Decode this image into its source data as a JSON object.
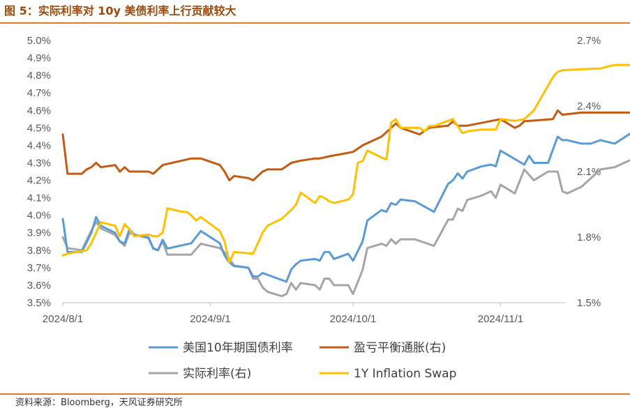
{
  "header": {
    "title": "图 5：实际利率对 10y 美债利率上行贡献较大"
  },
  "footer": {
    "source": "资料来源：Bloomberg，天风证券研究所"
  },
  "chart_data": {
    "type": "line",
    "title": "图 5：实际利率对 10y 美债利率上行贡献较大",
    "x_tick_labels": [
      "2024/8/1",
      "2024/9/1",
      "2024/10/1",
      "2024/11/1"
    ],
    "x_range": [
      "2024/8/1",
      "2024/11/29"
    ],
    "left_axis": {
      "ylim": [
        3.5,
        5.0
      ],
      "tick_labels": [
        "3.5%",
        "3.6%",
        "3.7%",
        "3.8%",
        "3.9%",
        "4.0%",
        "4.1%",
        "4.2%",
        "4.3%",
        "4.4%",
        "4.5%",
        "4.6%",
        "4.7%",
        "4.8%",
        "4.9%",
        "5.0%"
      ]
    },
    "right_axis": {
      "ylim": [
        1.5,
        2.7
      ],
      "tick_labels": [
        "1.5%",
        "1.8%",
        "2.1%",
        "2.4%",
        "2.7%"
      ]
    },
    "grid": false,
    "legend_position": "bottom",
    "series": [
      {
        "name": "美国10年期国债利率",
        "axis": "left",
        "color": "#5b9bd5",
        "points": [
          [
            "2024/8/1",
            3.98
          ],
          [
            "2024/8/2",
            3.79
          ],
          [
            "2024/8/5",
            3.79
          ],
          [
            "2024/8/7",
            3.9
          ],
          [
            "2024/8/8",
            3.99
          ],
          [
            "2024/8/9",
            3.94
          ],
          [
            "2024/8/12",
            3.9
          ],
          [
            "2024/8/13",
            3.85
          ],
          [
            "2024/8/14",
            3.84
          ],
          [
            "2024/8/15",
            3.92
          ],
          [
            "2024/8/16",
            3.89
          ],
          [
            "2024/8/19",
            3.87
          ],
          [
            "2024/8/20",
            3.81
          ],
          [
            "2024/8/21",
            3.8
          ],
          [
            "2024/8/22",
            3.86
          ],
          [
            "2024/8/23",
            3.81
          ],
          [
            "2024/8/28",
            3.84
          ],
          [
            "2024/8/30",
            3.91
          ],
          [
            "2024/9/3",
            3.84
          ],
          [
            "2024/9/4",
            3.77
          ],
          [
            "2024/9/5",
            3.73
          ],
          [
            "2024/9/6",
            3.71
          ],
          [
            "2024/9/9",
            3.7
          ],
          [
            "2024/9/10",
            3.65
          ],
          [
            "2024/9/11",
            3.65
          ],
          [
            "2024/9/12",
            3.67
          ],
          [
            "2024/9/17",
            3.62
          ],
          [
            "2024/9/18",
            3.69
          ],
          [
            "2024/9/19",
            3.72
          ],
          [
            "2024/9/20",
            3.74
          ],
          [
            "2024/9/23",
            3.75
          ],
          [
            "2024/9/24",
            3.74
          ],
          [
            "2024/9/25",
            3.79
          ],
          [
            "2024/9/26",
            3.79
          ],
          [
            "2024/9/27",
            3.75
          ],
          [
            "2024/9/30",
            3.78
          ],
          [
            "2024/10/1",
            3.74
          ],
          [
            "2024/10/3",
            3.85
          ],
          [
            "2024/10/4",
            3.97
          ],
          [
            "2024/10/7",
            4.03
          ],
          [
            "2024/10/8",
            4.02
          ],
          [
            "2024/10/9",
            4.07
          ],
          [
            "2024/10/10",
            4.06
          ],
          [
            "2024/10/11",
            4.09
          ],
          [
            "2024/10/14",
            4.08
          ],
          [
            "2024/10/18",
            4.02
          ],
          [
            "2024/10/21",
            4.18
          ],
          [
            "2024/10/22",
            4.2
          ],
          [
            "2024/10/23",
            4.24
          ],
          [
            "2024/10/24",
            4.21
          ],
          [
            "2024/10/25",
            4.25
          ],
          [
            "2024/10/28",
            4.28
          ],
          [
            "2024/10/30",
            4.29
          ],
          [
            "2024/10/31",
            4.28
          ],
          [
            "2024/11/1",
            4.37
          ],
          [
            "2024/11/6",
            4.29
          ],
          [
            "2024/11/7",
            4.34
          ],
          [
            "2024/11/8",
            4.3
          ],
          [
            "2024/11/11",
            4.3
          ],
          [
            "2024/11/13",
            4.45
          ],
          [
            "2024/11/14",
            4.43
          ],
          [
            "2024/11/15",
            4.43
          ],
          [
            "2024/11/18",
            4.41
          ],
          [
            "2024/11/20",
            4.41
          ],
          [
            "2024/11/22",
            4.43
          ],
          [
            "2024/11/25",
            4.41
          ],
          [
            "2024/11/29",
            4.48
          ]
        ]
      },
      {
        "name": "盈亏平衡通胀(右)",
        "axis": "right",
        "color": "#c55a11",
        "points": [
          [
            "2024/8/1",
            2.27
          ],
          [
            "2024/8/2",
            2.09
          ],
          [
            "2024/8/5",
            2.09
          ],
          [
            "2024/8/6",
            2.11
          ],
          [
            "2024/8/7",
            2.12
          ],
          [
            "2024/8/8",
            2.14
          ],
          [
            "2024/8/9",
            2.12
          ],
          [
            "2024/8/12",
            2.13
          ],
          [
            "2024/8/13",
            2.1
          ],
          [
            "2024/8/14",
            2.12
          ],
          [
            "2024/8/15",
            2.1
          ],
          [
            "2024/8/16",
            2.1
          ],
          [
            "2024/8/19",
            2.1
          ],
          [
            "2024/8/20",
            2.09
          ],
          [
            "2024/8/22",
            2.13
          ],
          [
            "2024/8/26",
            2.15
          ],
          [
            "2024/8/28",
            2.16
          ],
          [
            "2024/8/30",
            2.16
          ],
          [
            "2024/9/3",
            2.13
          ],
          [
            "2024/9/4",
            2.1
          ],
          [
            "2024/9/5",
            2.06
          ],
          [
            "2024/9/6",
            2.08
          ],
          [
            "2024/9/9",
            2.07
          ],
          [
            "2024/9/10",
            2.06
          ],
          [
            "2024/9/11",
            2.08
          ],
          [
            "2024/9/12",
            2.1
          ],
          [
            "2024/9/13",
            2.11
          ],
          [
            "2024/9/16",
            2.11
          ],
          [
            "2024/9/18",
            2.14
          ],
          [
            "2024/9/20",
            2.15
          ],
          [
            "2024/9/23",
            2.16
          ],
          [
            "2024/9/24",
            2.16
          ],
          [
            "2024/9/26",
            2.17
          ],
          [
            "2024/10/1",
            2.19
          ],
          [
            "2024/10/3",
            2.22
          ],
          [
            "2024/10/7",
            2.26
          ],
          [
            "2024/10/9",
            2.3
          ],
          [
            "2024/10/10",
            2.32
          ],
          [
            "2024/10/11",
            2.3
          ],
          [
            "2024/10/15",
            2.27
          ],
          [
            "2024/10/17",
            2.3
          ],
          [
            "2024/10/21",
            2.31
          ],
          [
            "2024/10/22",
            2.33
          ],
          [
            "2024/10/23",
            2.31
          ],
          [
            "2024/10/25",
            2.31
          ],
          [
            "2024/11/1",
            2.34
          ],
          [
            "2024/11/4",
            2.3
          ],
          [
            "2024/11/5",
            2.31
          ],
          [
            "2024/11/6",
            2.33
          ],
          [
            "2024/11/12",
            2.34
          ],
          [
            "2024/11/13",
            2.38
          ],
          [
            "2024/11/14",
            2.36
          ],
          [
            "2024/11/18",
            2.37
          ],
          [
            "2024/11/25",
            2.37
          ],
          [
            "2024/11/29",
            2.37
          ]
        ]
      },
      {
        "name": "实际利率(右)",
        "axis": "right",
        "color": "#a5a5a5",
        "points": [
          [
            "2024/8/1",
            1.8
          ],
          [
            "2024/8/2",
            1.75
          ],
          [
            "2024/8/5",
            1.74
          ],
          [
            "2024/8/7",
            1.83
          ],
          [
            "2024/8/8",
            1.87
          ],
          [
            "2024/8/9",
            1.84
          ],
          [
            "2024/8/12",
            1.81
          ],
          [
            "2024/8/13",
            1.78
          ],
          [
            "2024/8/14",
            1.76
          ],
          [
            "2024/8/15",
            1.82
          ],
          [
            "2024/8/16",
            1.81
          ],
          [
            "2024/8/19",
            1.8
          ],
          [
            "2024/8/20",
            1.75
          ],
          [
            "2024/8/21",
            1.74
          ],
          [
            "2024/8/22",
            1.78
          ],
          [
            "2024/8/23",
            1.72
          ],
          [
            "2024/8/28",
            1.72
          ],
          [
            "2024/8/30",
            1.77
          ],
          [
            "2024/9/3",
            1.75
          ],
          [
            "2024/9/4",
            1.73
          ],
          [
            "2024/9/5",
            1.7
          ],
          [
            "2024/9/6",
            1.67
          ],
          [
            "2024/9/9",
            1.66
          ],
          [
            "2024/9/10",
            1.61
          ],
          [
            "2024/9/11",
            1.61
          ],
          [
            "2024/9/12",
            1.57
          ],
          [
            "2024/9/13",
            1.55
          ],
          [
            "2024/9/16",
            1.53
          ],
          [
            "2024/9/17",
            1.54
          ],
          [
            "2024/9/18",
            1.59
          ],
          [
            "2024/9/19",
            1.56
          ],
          [
            "2024/9/20",
            1.59
          ],
          [
            "2024/9/23",
            1.58
          ],
          [
            "2024/9/24",
            1.56
          ],
          [
            "2024/9/25",
            1.61
          ],
          [
            "2024/9/26",
            1.61
          ],
          [
            "2024/9/27",
            1.58
          ],
          [
            "2024/9/30",
            1.58
          ],
          [
            "2024/10/1",
            1.54
          ],
          [
            "2024/10/3",
            1.65
          ],
          [
            "2024/10/4",
            1.75
          ],
          [
            "2024/10/7",
            1.77
          ],
          [
            "2024/10/8",
            1.76
          ],
          [
            "2024/10/9",
            1.79
          ],
          [
            "2024/10/10",
            1.77
          ],
          [
            "2024/10/11",
            1.79
          ],
          [
            "2024/10/14",
            1.79
          ],
          [
            "2024/10/18",
            1.76
          ],
          [
            "2024/10/21",
            1.88
          ],
          [
            "2024/10/22",
            1.88
          ],
          [
            "2024/10/23",
            1.93
          ],
          [
            "2024/10/24",
            1.92
          ],
          [
            "2024/10/25",
            1.97
          ],
          [
            "2024/10/28",
            1.99
          ],
          [
            "2024/10/30",
            2.01
          ],
          [
            "2024/10/31",
            1.98
          ],
          [
            "2024/11/1",
            2.04
          ],
          [
            "2024/11/4",
            2.0
          ],
          [
            "2024/11/6",
            2.11
          ],
          [
            "2024/11/8",
            2.06
          ],
          [
            "2024/11/11",
            2.1
          ],
          [
            "2024/11/13",
            2.1
          ],
          [
            "2024/11/14",
            2.01
          ],
          [
            "2024/11/15",
            2.0
          ],
          [
            "2024/11/18",
            2.03
          ],
          [
            "2024/11/22",
            2.11
          ],
          [
            "2024/11/25",
            2.12
          ],
          [
            "2024/11/29",
            2.16
          ]
        ]
      },
      {
        "name": "1Y Inflation Swap",
        "axis": "left",
        "color": "#ffc000",
        "points": [
          [
            "2024/8/1",
            3.77
          ],
          [
            "2024/8/2",
            3.78
          ],
          [
            "2024/8/6",
            3.8
          ],
          [
            "2024/8/7",
            3.84
          ],
          [
            "2024/8/8",
            3.9
          ],
          [
            "2024/8/9",
            3.96
          ],
          [
            "2024/8/12",
            3.94
          ],
          [
            "2024/8/13",
            3.88
          ],
          [
            "2024/8/14",
            3.95
          ],
          [
            "2024/8/15",
            3.92
          ],
          [
            "2024/8/16",
            3.88
          ],
          [
            "2024/8/19",
            3.89
          ],
          [
            "2024/8/20",
            3.88
          ],
          [
            "2024/8/21",
            3.88
          ],
          [
            "2024/8/22",
            3.9
          ],
          [
            "2024/8/23",
            4.04
          ],
          [
            "2024/8/26",
            4.02
          ],
          [
            "2024/8/27",
            4.02
          ],
          [
            "2024/8/28",
            4.0
          ],
          [
            "2024/8/29",
            3.97
          ],
          [
            "2024/8/30",
            3.99
          ],
          [
            "2024/9/3",
            3.91
          ],
          [
            "2024/9/4",
            3.85
          ],
          [
            "2024/9/5",
            3.73
          ],
          [
            "2024/9/6",
            3.79
          ],
          [
            "2024/9/10",
            3.78
          ],
          [
            "2024/9/11",
            3.84
          ],
          [
            "2024/9/12",
            3.9
          ],
          [
            "2024/9/13",
            3.94
          ],
          [
            "2024/9/16",
            3.98
          ],
          [
            "2024/9/18",
            4.03
          ],
          [
            "2024/9/19",
            4.06
          ],
          [
            "2024/9/20",
            4.13
          ],
          [
            "2024/9/23",
            4.07
          ],
          [
            "2024/9/24",
            4.11
          ],
          [
            "2024/9/25",
            4.1
          ],
          [
            "2024/9/26",
            4.08
          ],
          [
            "2024/9/27",
            4.07
          ],
          [
            "2024/9/30",
            4.09
          ],
          [
            "2024/10/1",
            4.12
          ],
          [
            "2024/10/2",
            4.3
          ],
          [
            "2024/10/3",
            4.31
          ],
          [
            "2024/10/4",
            4.37
          ],
          [
            "2024/10/7",
            4.33
          ],
          [
            "2024/10/8",
            4.32
          ],
          [
            "2024/10/9",
            4.53
          ],
          [
            "2024/10/10",
            4.55
          ],
          [
            "2024/10/11",
            4.5
          ],
          [
            "2024/10/15",
            4.5
          ],
          [
            "2024/10/16",
            4.48
          ],
          [
            "2024/10/17",
            4.51
          ],
          [
            "2024/10/18",
            4.51
          ],
          [
            "2024/10/22",
            4.55
          ],
          [
            "2024/10/24",
            4.47
          ],
          [
            "2024/10/25",
            4.48
          ],
          [
            "2024/10/28",
            4.49
          ],
          [
            "2024/10/31",
            4.49
          ],
          [
            "2024/11/1",
            4.55
          ],
          [
            "2024/11/4",
            4.54
          ],
          [
            "2024/11/6",
            4.55
          ],
          [
            "2024/11/8",
            4.6
          ],
          [
            "2024/11/12",
            4.79
          ],
          [
            "2024/11/13",
            4.82
          ],
          [
            "2024/11/14",
            4.83
          ],
          [
            "2024/11/22",
            4.84
          ],
          [
            "2024/11/25",
            4.86
          ],
          [
            "2024/11/29",
            4.86
          ]
        ]
      }
    ]
  }
}
